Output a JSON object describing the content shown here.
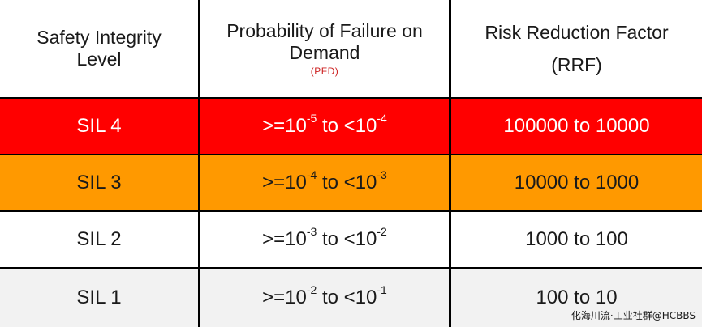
{
  "header": {
    "col1_line1": "Safety Integrity",
    "col1_line2": "Level",
    "col2_line1": "Probability of Failure on",
    "col2_line2": "Demand",
    "col2_sub": "(PFD)",
    "col3_line1": "Risk Reduction Factor",
    "col3_line2": "(RRF)"
  },
  "rows": [
    {
      "sil": "SIL 4",
      "pfd_prefix": ">=10",
      "pfd_exp1": "-5",
      "pfd_mid": " to <10",
      "pfd_exp2": "-4",
      "rrf": "100000 to 10000",
      "color": "#ff0000"
    },
    {
      "sil": "SIL 3",
      "pfd_prefix": ">=10",
      "pfd_exp1": "-4",
      "pfd_mid": " to <10",
      "pfd_exp2": "-3",
      "rrf": "10000 to 1000",
      "color": "#ff9900"
    },
    {
      "sil": "SIL 2",
      "pfd_prefix": ">=10",
      "pfd_exp1": "-3",
      "pfd_mid": " to <10",
      "pfd_exp2": "-2",
      "rrf": "1000 to 100",
      "color": "#ffffff"
    },
    {
      "sil": "SIL 1",
      "pfd_prefix": ">=10",
      "pfd_exp1": "-2",
      "pfd_mid": " to <10",
      "pfd_exp2": "-1",
      "rrf": "100 to 10",
      "color": "#f2f2f2"
    }
  ],
  "watermark": {
    "main": "化海川流·工业社群@HCBBS",
    "tail": ""
  }
}
